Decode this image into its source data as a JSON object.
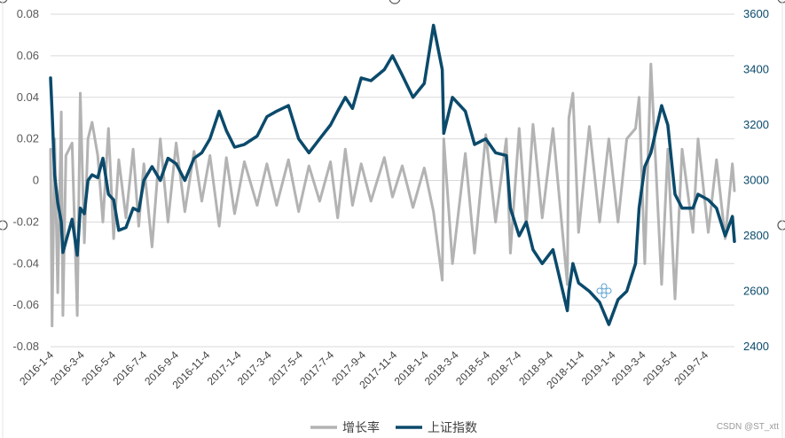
{
  "chart_data": {
    "type": "line",
    "left_axis": {
      "ylim": [
        -0.08,
        0.08
      ],
      "ticks": [
        "0.08",
        "0.06",
        "0.04",
        "0.02",
        "0",
        "-0.02",
        "-0.04",
        "-0.06",
        "-0.08"
      ]
    },
    "right_axis": {
      "ylim": [
        2400,
        3600
      ],
      "ticks": [
        "3600",
        "3400",
        "3200",
        "3000",
        "2800",
        "2600",
        "2400"
      ]
    },
    "x_ticks": [
      "2016-1-4",
      "2016-3-4",
      "2016-5-4",
      "2016-7-4",
      "2016-9-4",
      "2016-11-4",
      "2017-1-4",
      "2017-3-4",
      "2017-5-4",
      "2017-7-4",
      "2017-9-4",
      "2017-11-4",
      "2018-1-4",
      "2018-3-4",
      "2018-5-4",
      "2018-7-4",
      "2018-9-4",
      "2018-11-4",
      "2019-1-4",
      "2019-3-4",
      "2019-5-4",
      "2019-7-4"
    ],
    "x_range": [
      "2016-1-4",
      "2019-8-30"
    ],
    "grid": true,
    "legend": "bottom",
    "series": [
      {
        "name": "增长率",
        "axis": "left",
        "color": "#b3b3b3",
        "x": [
          "2016-1-4",
          "2016-1-7",
          "2016-1-12",
          "2016-1-18",
          "2016-1-25",
          "2016-1-28",
          "2016-2-3",
          "2016-2-15",
          "2016-2-25",
          "2016-3-2",
          "2016-3-10",
          "2016-3-17",
          "2016-3-25",
          "2016-4-5",
          "2016-4-15",
          "2016-4-26",
          "2016-5-6",
          "2016-5-16",
          "2016-5-30",
          "2016-6-13",
          "2016-6-24",
          "2016-7-4",
          "2016-7-20",
          "2016-8-5",
          "2016-8-20",
          "2016-9-5",
          "2016-9-22",
          "2016-10-10",
          "2016-10-25",
          "2016-11-10",
          "2016-11-28",
          "2016-12-12",
          "2016-12-28",
          "2017-1-16",
          "2017-2-10",
          "2017-3-1",
          "2017-3-20",
          "2017-4-12",
          "2017-5-2",
          "2017-5-22",
          "2017-6-12",
          "2017-7-3",
          "2017-7-17",
          "2017-8-1",
          "2017-8-15",
          "2017-9-1",
          "2017-9-20",
          "2017-10-16",
          "2017-11-1",
          "2017-11-20",
          "2017-12-11",
          "2018-1-2",
          "2018-1-20",
          "2018-2-6",
          "2018-2-9",
          "2018-2-26",
          "2018-3-23",
          "2018-4-10",
          "2018-5-2",
          "2018-5-21",
          "2018-6-11",
          "2018-6-19",
          "2018-7-6",
          "2018-7-20",
          "2018-8-2",
          "2018-8-20",
          "2018-9-10",
          "2018-10-8",
          "2018-10-11",
          "2018-10-19",
          "2018-10-30",
          "2018-11-20",
          "2018-12-10",
          "2018-12-28",
          "2019-1-15",
          "2019-2-1",
          "2019-2-18",
          "2019-2-25",
          "2019-3-8",
          "2019-3-20",
          "2019-4-10",
          "2019-4-22",
          "2019-5-6",
          "2019-5-20",
          "2019-6-10",
          "2019-6-20",
          "2019-7-10",
          "2019-7-26",
          "2019-8-12",
          "2019-8-26",
          "2019-8-30"
        ],
        "values": [
          0.015,
          -0.07,
          0.02,
          -0.054,
          0.033,
          -0.065,
          0.012,
          0.018,
          -0.065,
          0.042,
          -0.03,
          0.02,
          0.028,
          0.012,
          -0.02,
          0.025,
          -0.028,
          0.01,
          -0.018,
          0.015,
          -0.022,
          0.008,
          -0.032,
          0.02,
          -0.02,
          0.018,
          -0.015,
          0.014,
          -0.01,
          0.012,
          -0.022,
          0.011,
          -0.016,
          0.009,
          -0.012,
          0.008,
          -0.012,
          0.01,
          -0.015,
          0.007,
          -0.01,
          0.009,
          -0.018,
          0.015,
          -0.012,
          0.008,
          -0.01,
          0.011,
          -0.008,
          0.007,
          -0.013,
          0.006,
          -0.015,
          -0.048,
          0.02,
          -0.04,
          0.013,
          -0.035,
          0.022,
          -0.02,
          0.02,
          -0.035,
          0.025,
          -0.022,
          0.027,
          -0.018,
          0.025,
          -0.05,
          0.03,
          0.042,
          -0.025,
          0.026,
          -0.02,
          0.02,
          -0.02,
          0.02,
          0.025,
          0.04,
          -0.04,
          0.056,
          -0.05,
          0.015,
          -0.057,
          0.015,
          -0.025,
          0.02,
          -0.025,
          0.01,
          -0.028,
          0.008,
          -0.005
        ]
      },
      {
        "name": "上证指数",
        "axis": "right",
        "color": "#0b4a6b",
        "x": [
          "2016-1-4",
          "2016-1-7",
          "2016-1-12",
          "2016-1-18",
          "2016-1-25",
          "2016-1-28",
          "2016-2-3",
          "2016-2-15",
          "2016-2-25",
          "2016-3-2",
          "2016-3-10",
          "2016-3-17",
          "2016-3-25",
          "2016-4-5",
          "2016-4-15",
          "2016-4-26",
          "2016-5-6",
          "2016-5-16",
          "2016-5-30",
          "2016-6-13",
          "2016-6-24",
          "2016-7-4",
          "2016-7-20",
          "2016-8-5",
          "2016-8-20",
          "2016-9-5",
          "2016-9-22",
          "2016-10-10",
          "2016-10-25",
          "2016-11-10",
          "2016-11-28",
          "2016-12-12",
          "2016-12-28",
          "2017-1-16",
          "2017-2-10",
          "2017-3-1",
          "2017-3-20",
          "2017-4-12",
          "2017-5-2",
          "2017-5-22",
          "2017-6-12",
          "2017-7-3",
          "2017-7-17",
          "2017-8-1",
          "2017-8-15",
          "2017-9-1",
          "2017-9-20",
          "2017-10-16",
          "2017-11-1",
          "2017-11-20",
          "2017-12-11",
          "2018-1-2",
          "2018-1-20",
          "2018-2-6",
          "2018-2-9",
          "2018-2-26",
          "2018-3-23",
          "2018-4-10",
          "2018-5-2",
          "2018-5-21",
          "2018-6-11",
          "2018-6-19",
          "2018-7-6",
          "2018-7-20",
          "2018-8-2",
          "2018-8-20",
          "2018-9-10",
          "2018-10-8",
          "2018-10-11",
          "2018-10-19",
          "2018-10-30",
          "2018-11-20",
          "2018-12-10",
          "2018-12-28",
          "2019-1-15",
          "2019-2-1",
          "2019-2-18",
          "2019-2-25",
          "2019-3-8",
          "2019-3-20",
          "2019-4-10",
          "2019-4-22",
          "2019-5-6",
          "2019-5-20",
          "2019-6-10",
          "2019-6-20",
          "2019-7-10",
          "2019-7-26",
          "2019-8-12",
          "2019-8-26",
          "2019-8-30"
        ],
        "values": [
          3370,
          3250,
          3020,
          2920,
          2850,
          2740,
          2780,
          2860,
          2730,
          2900,
          2880,
          3000,
          3020,
          3010,
          3080,
          2950,
          2930,
          2820,
          2830,
          2900,
          2890,
          3000,
          3050,
          3000,
          3080,
          3060,
          3000,
          3080,
          3100,
          3150,
          3250,
          3180,
          3120,
          3130,
          3160,
          3230,
          3250,
          3270,
          3150,
          3100,
          3150,
          3200,
          3250,
          3300,
          3260,
          3370,
          3360,
          3400,
          3450,
          3380,
          3300,
          3350,
          3560,
          3400,
          3170,
          3300,
          3250,
          3130,
          3150,
          3100,
          3090,
          2900,
          2800,
          2850,
          2750,
          2700,
          2750,
          2530,
          2600,
          2700,
          2630,
          2600,
          2560,
          2480,
          2570,
          2600,
          2700,
          2900,
          3050,
          3100,
          3270,
          3200,
          2950,
          2900,
          2900,
          2950,
          2930,
          2900,
          2800,
          2870,
          2780
        ]
      }
    ]
  },
  "legend": [
    {
      "label": "增长率",
      "color": "#b3b3b3"
    },
    {
      "label": "上证指数",
      "color": "#0b4a6b"
    }
  ],
  "watermark": "CSDN @ST_xtt"
}
